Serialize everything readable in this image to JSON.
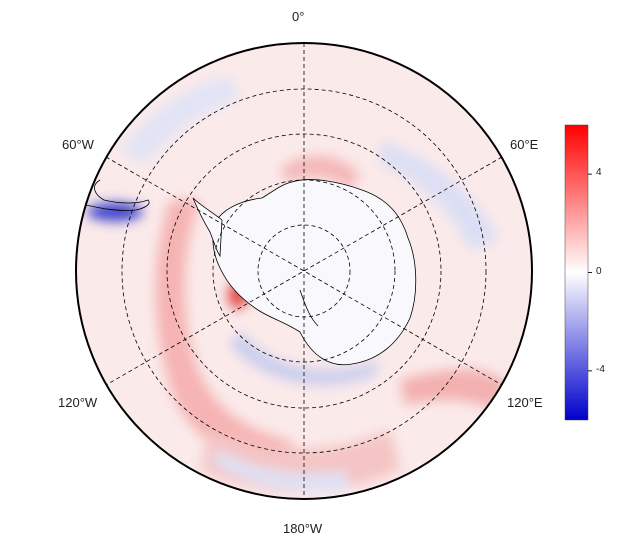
{
  "map": {
    "projection": "south-polar-stereographic",
    "longitude_labels": {
      "lon_0": "0°",
      "lon_60w": "60°W",
      "lon_60e": "60°E",
      "lon_120w": "120°W",
      "lon_120e": "120°E",
      "lon_180": "180°W"
    },
    "graticule": {
      "meridians_deg": [
        0,
        60,
        120,
        180,
        240,
        300
      ],
      "parallel_rings": 5,
      "style": "dashed"
    }
  },
  "colorbar": {
    "colormap": "blue-white-red",
    "min_color": "#0000cc",
    "mid_color": "#ffffff",
    "max_color": "#ff0000",
    "range": [
      -6,
      6
    ],
    "tick_values": [
      4,
      0,
      -4
    ],
    "tick_labels": [
      "4",
      "0",
      "-4"
    ]
  },
  "field_features": {
    "dominant": "weak positive (light red) anomalies over most of the Southern Ocean",
    "strong_positive_near": "Antarctic Peninsula west coast",
    "strong_negative_near": "southern tip of South America",
    "ring_negative": "band around the Antarctic coast near 120°W-180°"
  },
  "colors": {
    "coastline": "#000000",
    "border": "#000000",
    "grid": "#000000"
  }
}
